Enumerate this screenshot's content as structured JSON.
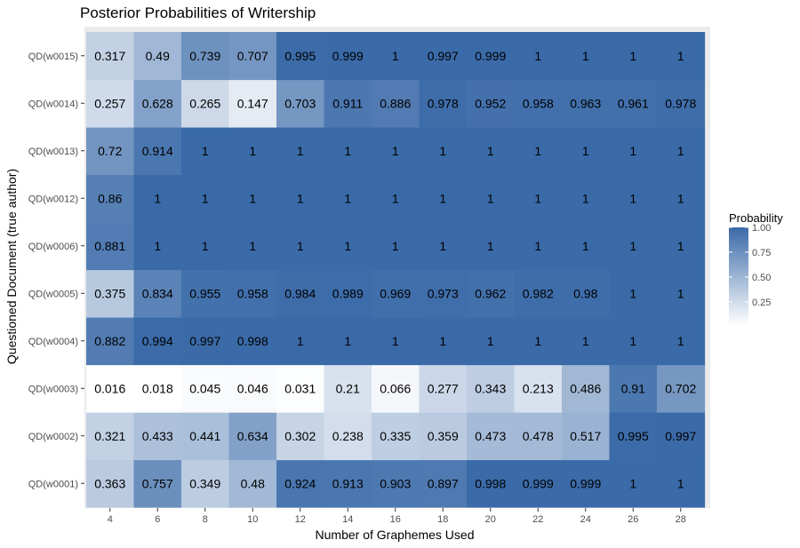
{
  "chart_data": {
    "type": "heatmap",
    "title": "Posterior Probabilities of Writership",
    "xlabel": "Number of Graphemes Used",
    "ylabel": "Questioned Document (true author)",
    "x": [
      "4",
      "6",
      "8",
      "10",
      "12",
      "14",
      "16",
      "18",
      "20",
      "22",
      "24",
      "26",
      "28"
    ],
    "y": [
      "QD(w0001)",
      "QD(w0002)",
      "QD(w0003)",
      "QD(w0004)",
      "QD(w0005)",
      "QD(w0006)",
      "QD(w0012)",
      "QD(w0013)",
      "QD(w0014)",
      "QD(w0015)"
    ],
    "values": [
      [
        "0.363",
        "0.757",
        "0.349",
        "0.48",
        "0.924",
        "0.913",
        "0.903",
        "0.897",
        "0.998",
        "0.999",
        "0.999",
        "1",
        "1"
      ],
      [
        "0.321",
        "0.433",
        "0.441",
        "0.634",
        "0.302",
        "0.238",
        "0.335",
        "0.359",
        "0.473",
        "0.478",
        "0.517",
        "0.995",
        "0.997"
      ],
      [
        "0.016",
        "0.018",
        "0.045",
        "0.046",
        "0.031",
        "0.21",
        "0.066",
        "0.277",
        "0.343",
        "0.213",
        "0.486",
        "0.91",
        "0.702"
      ],
      [
        "0.882",
        "0.994",
        "0.997",
        "0.998",
        "1",
        "1",
        "1",
        "1",
        "1",
        "1",
        "1",
        "1",
        "1"
      ],
      [
        "0.375",
        "0.834",
        "0.955",
        "0.958",
        "0.984",
        "0.989",
        "0.969",
        "0.973",
        "0.962",
        "0.982",
        "0.98",
        "1",
        "1"
      ],
      [
        "0.881",
        "1",
        "1",
        "1",
        "1",
        "1",
        "1",
        "1",
        "1",
        "1",
        "1",
        "1",
        "1"
      ],
      [
        "0.86",
        "1",
        "1",
        "1",
        "1",
        "1",
        "1",
        "1",
        "1",
        "1",
        "1",
        "1",
        "1"
      ],
      [
        "0.72",
        "0.914",
        "1",
        "1",
        "1",
        "1",
        "1",
        "1",
        "1",
        "1",
        "1",
        "1",
        "1"
      ],
      [
        "0.257",
        "0.628",
        "0.265",
        "0.147",
        "0.703",
        "0.911",
        "0.886",
        "0.978",
        "0.952",
        "0.958",
        "0.963",
        "0.961",
        "0.978"
      ],
      [
        "0.317",
        "0.49",
        "0.739",
        "0.707",
        "0.995",
        "0.999",
        "1",
        "0.997",
        "0.999",
        "1",
        "1",
        "1",
        "1"
      ]
    ],
    "legend": {
      "title": "Probability",
      "ticks": [
        "1.00",
        "0.75",
        "0.50",
        "0.25"
      ],
      "placement": "right",
      "color_low": "#ffffff",
      "color_high": "#3a6aa8"
    },
    "panel_color": "#ebebeb"
  }
}
